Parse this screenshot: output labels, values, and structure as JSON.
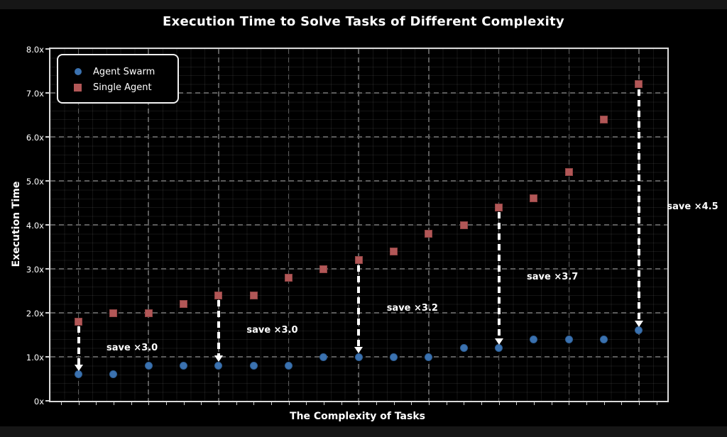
{
  "chart_data": {
    "type": "scatter",
    "title": "Execution Time to Solve Tasks of Different Complexity",
    "xlabel": "The Complexity of Tasks",
    "ylabel": "Execution Time",
    "x": [
      1,
      2,
      3,
      4,
      5,
      6,
      7,
      8,
      9,
      10,
      11,
      12,
      13,
      14,
      15,
      16,
      17
    ],
    "series": [
      {
        "name": "Agent Swarm",
        "marker": "circle",
        "color": "#3b72b0",
        "edge_color": "#2e5e94",
        "values": [
          0.6,
          0.6,
          0.8,
          0.8,
          0.8,
          0.8,
          0.8,
          1.0,
          1.0,
          1.0,
          1.0,
          1.2,
          1.2,
          1.4,
          1.4,
          1.4,
          1.6
        ]
      },
      {
        "name": "Single Agent",
        "marker": "square",
        "color": "#b25757",
        "edge_color": "#8f4343",
        "values": [
          1.8,
          2.0,
          2.0,
          2.2,
          2.4,
          2.4,
          2.8,
          3.0,
          3.2,
          3.4,
          3.8,
          4.0,
          4.4,
          4.6,
          5.2,
          6.4,
          7.2
        ]
      }
    ],
    "ylim": [
      0,
      8
    ],
    "ytick_values": [
      0,
      1,
      2,
      3,
      4,
      5,
      6,
      7,
      8
    ],
    "ytick_labels": [
      "0x",
      "1.0x",
      "2.0x",
      "3.0x",
      "4.0x",
      "5.0x",
      "6.0x",
      "7.0x",
      "8.0x"
    ],
    "x_gridline_indices": [
      0,
      2,
      4,
      6,
      8,
      10,
      12,
      14,
      16
    ],
    "grid": {
      "major": "dashed",
      "minor": "dotted"
    },
    "legend": {
      "position": "upper-left"
    },
    "annotations": [
      {
        "point_index": 0,
        "label": "save ×3.0",
        "label_dx_units": 0.8,
        "label_y_value": 1.2
      },
      {
        "point_index": 4,
        "label": "save ×3.0",
        "label_dx_units": 0.8,
        "label_y_value": 1.6
      },
      {
        "point_index": 8,
        "label": "save ×3.2",
        "label_dx_units": 0.8,
        "label_y_value": 2.1
      },
      {
        "point_index": 12,
        "label": "save ×3.7",
        "label_dx_units": 0.8,
        "label_y_value": 2.8
      },
      {
        "point_index": 16,
        "label": "save ×4.5",
        "label_dx_units": 0.8,
        "label_y_value": 4.4
      }
    ],
    "colors": {
      "background": "#000000",
      "axes_spine": "#d9d9d9",
      "grid_major": "#5c5c5c",
      "text": "#ffffff",
      "arrow": "#ffffff"
    }
  }
}
